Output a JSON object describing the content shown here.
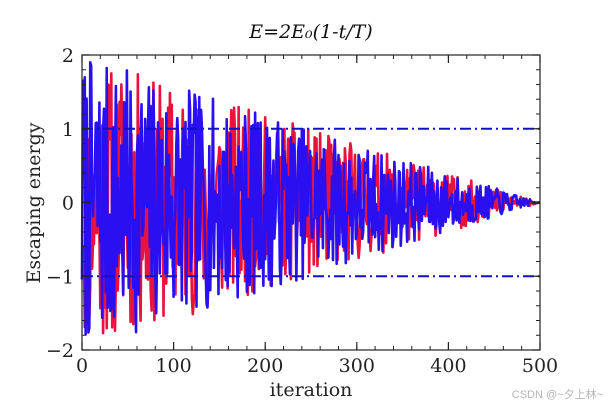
{
  "chart_data": {
    "type": "line",
    "title": "E=2E₀(1-t/T)",
    "xlabel": "iteration",
    "ylabel": "Escaping energy",
    "xlim": [
      0,
      500
    ],
    "ylim": [
      -2,
      2
    ],
    "xticks": [
      0,
      100,
      200,
      300,
      400,
      500
    ],
    "yticks": [
      -2,
      -1,
      0,
      1,
      2
    ],
    "grid": false,
    "legend": "none",
    "series": [
      {
        "color": "#e8123c",
        "style": "solid",
        "shape": "oscillation within ±2(1-t/500), random sign/amplitude",
        "seed": 11
      },
      {
        "color": "#2a10f0",
        "style": "solid",
        "shape": "oscillation within ±2(1-t/500), random sign/amplitude",
        "seed": 7
      }
    ],
    "reference_lines": [
      {
        "y": 1,
        "color": "#1010c8",
        "style": "dashdot",
        "x_from": 0,
        "x_to": 500
      },
      {
        "y": -1,
        "color": "#1010c8",
        "style": "dashdot",
        "x_from": 0,
        "x_to": 500
      }
    ]
  },
  "watermark": "CSDN @~夕上林~"
}
